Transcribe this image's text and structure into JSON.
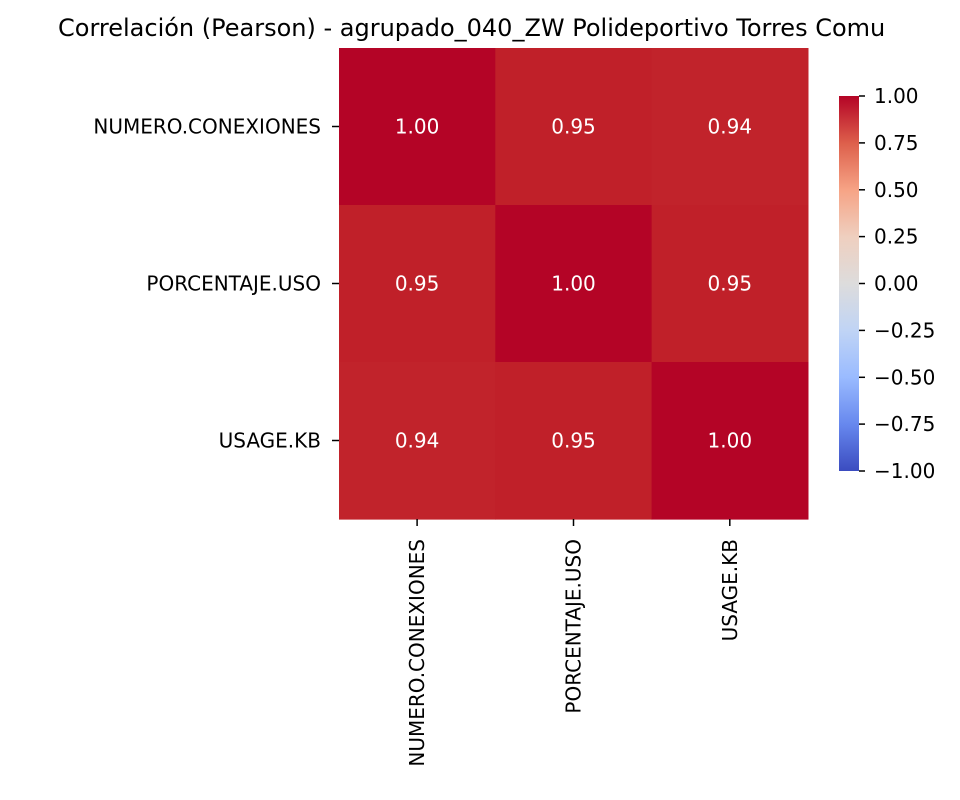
{
  "chart_data": {
    "type": "heatmap",
    "title": "Correlación (Pearson) - agrupado_040_ZW Polideportivo Torres Comu",
    "x_labels": [
      "NUMERO.CONEXIONES",
      "PORCENTAJE.USO",
      "USAGE.KB"
    ],
    "y_labels": [
      "NUMERO.CONEXIONES",
      "PORCENTAJE.USO",
      "USAGE.KB"
    ],
    "matrix": [
      [
        1.0,
        0.95,
        0.94
      ],
      [
        0.95,
        1.0,
        0.95
      ],
      [
        0.94,
        0.95,
        1.0
      ]
    ],
    "annotations": [
      [
        "1.00",
        "0.95",
        "0.94"
      ],
      [
        "0.95",
        "1.00",
        "0.95"
      ],
      [
        "0.94",
        "0.95",
        "1.00"
      ]
    ],
    "colorscale": "coolwarm",
    "vmin": -1.0,
    "vmax": 1.0,
    "colorbar_ticks": [
      1.0,
      0.75,
      0.5,
      0.25,
      0.0,
      -0.25,
      -0.5,
      -0.75,
      -1.0
    ],
    "colorbar_tick_labels": [
      "1.00",
      "0.75",
      "0.50",
      "0.25",
      "0.00",
      "−0.25",
      "−0.50",
      "−0.75",
      "−1.00"
    ],
    "colorbar_placement": "right",
    "grid": false
  }
}
